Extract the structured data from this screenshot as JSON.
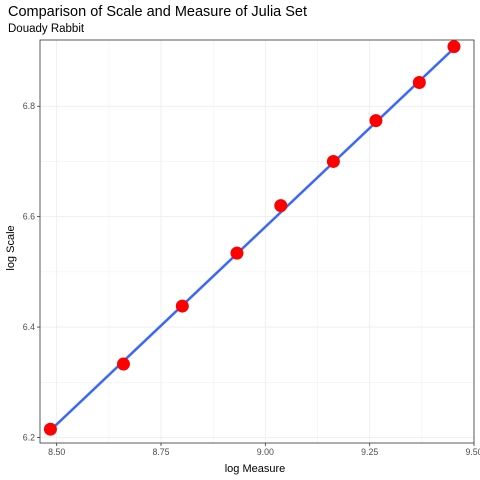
{
  "chart_data": {
    "type": "scatter",
    "title": "Comparison of Scale and Measure of Julia Set",
    "subtitle": "Douady Rabbit",
    "xlabel": "log Measure",
    "ylabel": "log Scale",
    "xlim": [
      8.46,
      9.5
    ],
    "ylim": [
      6.19,
      6.92
    ],
    "x_ticks": [
      8.5,
      8.75,
      9.0,
      9.25,
      9.5
    ],
    "x_tick_labels": [
      "8.50",
      "8.75",
      "9.00",
      "9.25",
      "9.50"
    ],
    "y_ticks": [
      6.2,
      6.4,
      6.6,
      6.8
    ],
    "y_tick_labels": [
      "6.2",
      "6.4",
      "6.6",
      "6.8"
    ],
    "grid": true,
    "points": [
      {
        "x": 8.485,
        "y": 6.215
      },
      {
        "x": 8.66,
        "y": 6.333
      },
      {
        "x": 8.801,
        "y": 6.438
      },
      {
        "x": 8.932,
        "y": 6.534
      },
      {
        "x": 9.037,
        "y": 6.62
      },
      {
        "x": 9.163,
        "y": 6.7
      },
      {
        "x": 9.265,
        "y": 6.774
      },
      {
        "x": 9.369,
        "y": 6.843
      },
      {
        "x": 9.452,
        "y": 6.908
      }
    ],
    "fit_line": {
      "x": [
        8.485,
        9.452
      ],
      "y": [
        6.213,
        6.905
      ]
    },
    "colors": {
      "points": "#ff0000",
      "fit_line": "#3366ff",
      "confidence_band": "#b3b3b3",
      "grid": "#ebebeb",
      "panel_border": "#333333"
    }
  }
}
